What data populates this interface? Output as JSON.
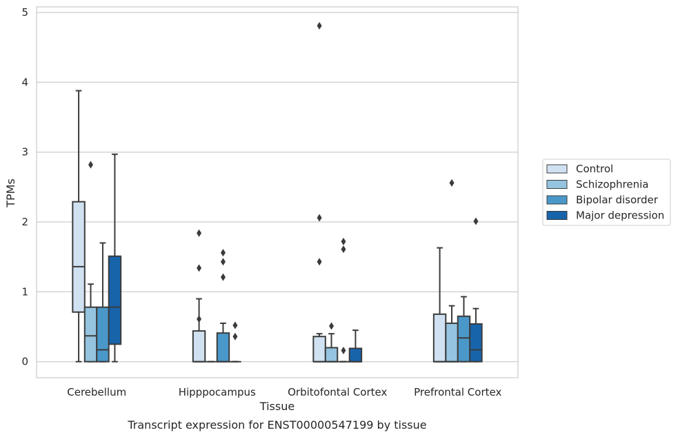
{
  "chart_data": {
    "type": "boxplot",
    "caption": "Transcript expression for ENST00000547199 by tissue",
    "xlabel": "Tissue",
    "ylabel": "TPMs",
    "ylim": [
      -0.23,
      5.08
    ],
    "yticks": [
      "0",
      "1",
      "2",
      "3",
      "4",
      "5"
    ],
    "grid": true,
    "legend_position": "right",
    "categories": [
      "Cerebellum",
      "Hipppocampus",
      "Orbitofontal Cortex",
      "Prefrontal Cortex"
    ],
    "series": [
      {
        "name": "Control",
        "color": "#d0e1f2",
        "boxes": [
          {
            "whislo": 0.0,
            "q1": 0.71,
            "med": 1.36,
            "q3": 2.29,
            "whishi": 3.88,
            "fliers": []
          },
          {
            "whislo": 0.0,
            "q1": 0.0,
            "med": 0.0,
            "q3": 0.44,
            "whishi": 0.9,
            "fliers": [
              1.84,
              1.34,
              0.61
            ]
          },
          {
            "whislo": 0.0,
            "q1": 0.0,
            "med": 0.0,
            "q3": 0.36,
            "whishi": 0.4,
            "fliers": [
              4.81,
              2.06,
              1.43
            ]
          },
          {
            "whislo": 0.0,
            "q1": 0.0,
            "med": 0.0,
            "q3": 0.68,
            "whishi": 1.63,
            "fliers": []
          }
        ]
      },
      {
        "name": "Schizophrenia",
        "color": "#94c4df",
        "boxes": [
          {
            "whislo": 0.0,
            "q1": 0.0,
            "med": 0.37,
            "q3": 0.78,
            "whishi": 1.11,
            "fliers": [
              2.82
            ]
          },
          {
            "whislo": 0.0,
            "q1": 0.0,
            "med": 0.0,
            "q3": 0.0,
            "whishi": 0.0,
            "fliers": []
          },
          {
            "whislo": 0.0,
            "q1": 0.0,
            "med": 0.0,
            "q3": 0.2,
            "whishi": 0.4,
            "fliers": [
              0.51
            ]
          },
          {
            "whislo": 0.0,
            "q1": 0.0,
            "med": 0.0,
            "q3": 0.55,
            "whishi": 0.8,
            "fliers": [
              2.56
            ]
          }
        ]
      },
      {
        "name": "Bipolar disorder",
        "color": "#4a98c9",
        "boxes": [
          {
            "whislo": 0.0,
            "q1": 0.0,
            "med": 0.17,
            "q3": 0.78,
            "whishi": 1.7,
            "fliers": []
          },
          {
            "whislo": 0.0,
            "q1": 0.0,
            "med": 0.0,
            "q3": 0.41,
            "whishi": 0.55,
            "fliers": [
              1.56,
              1.43,
              1.21
            ]
          },
          {
            "whislo": 0.0,
            "q1": 0.0,
            "med": 0.0,
            "q3": 0.0,
            "whishi": 0.0,
            "fliers": [
              1.72,
              1.61,
              0.16
            ]
          },
          {
            "whislo": 0.0,
            "q1": 0.0,
            "med": 0.34,
            "q3": 0.65,
            "whishi": 0.93,
            "fliers": []
          }
        ]
      },
      {
        "name": "Major depression",
        "color": "#1764ab",
        "boxes": [
          {
            "whislo": 0.0,
            "q1": 0.25,
            "med": 0.78,
            "q3": 1.51,
            "whishi": 2.97,
            "fliers": []
          },
          {
            "whislo": 0.0,
            "q1": 0.0,
            "med": 0.0,
            "q3": 0.0,
            "whishi": 0.0,
            "fliers": [
              0.52,
              0.36
            ]
          },
          {
            "whislo": 0.0,
            "q1": 0.0,
            "med": 0.0,
            "q3": 0.19,
            "whishi": 0.45,
            "fliers": []
          },
          {
            "whislo": 0.0,
            "q1": 0.0,
            "med": 0.17,
            "q3": 0.54,
            "whishi": 0.76,
            "fliers": [
              2.01
            ]
          }
        ]
      }
    ]
  }
}
